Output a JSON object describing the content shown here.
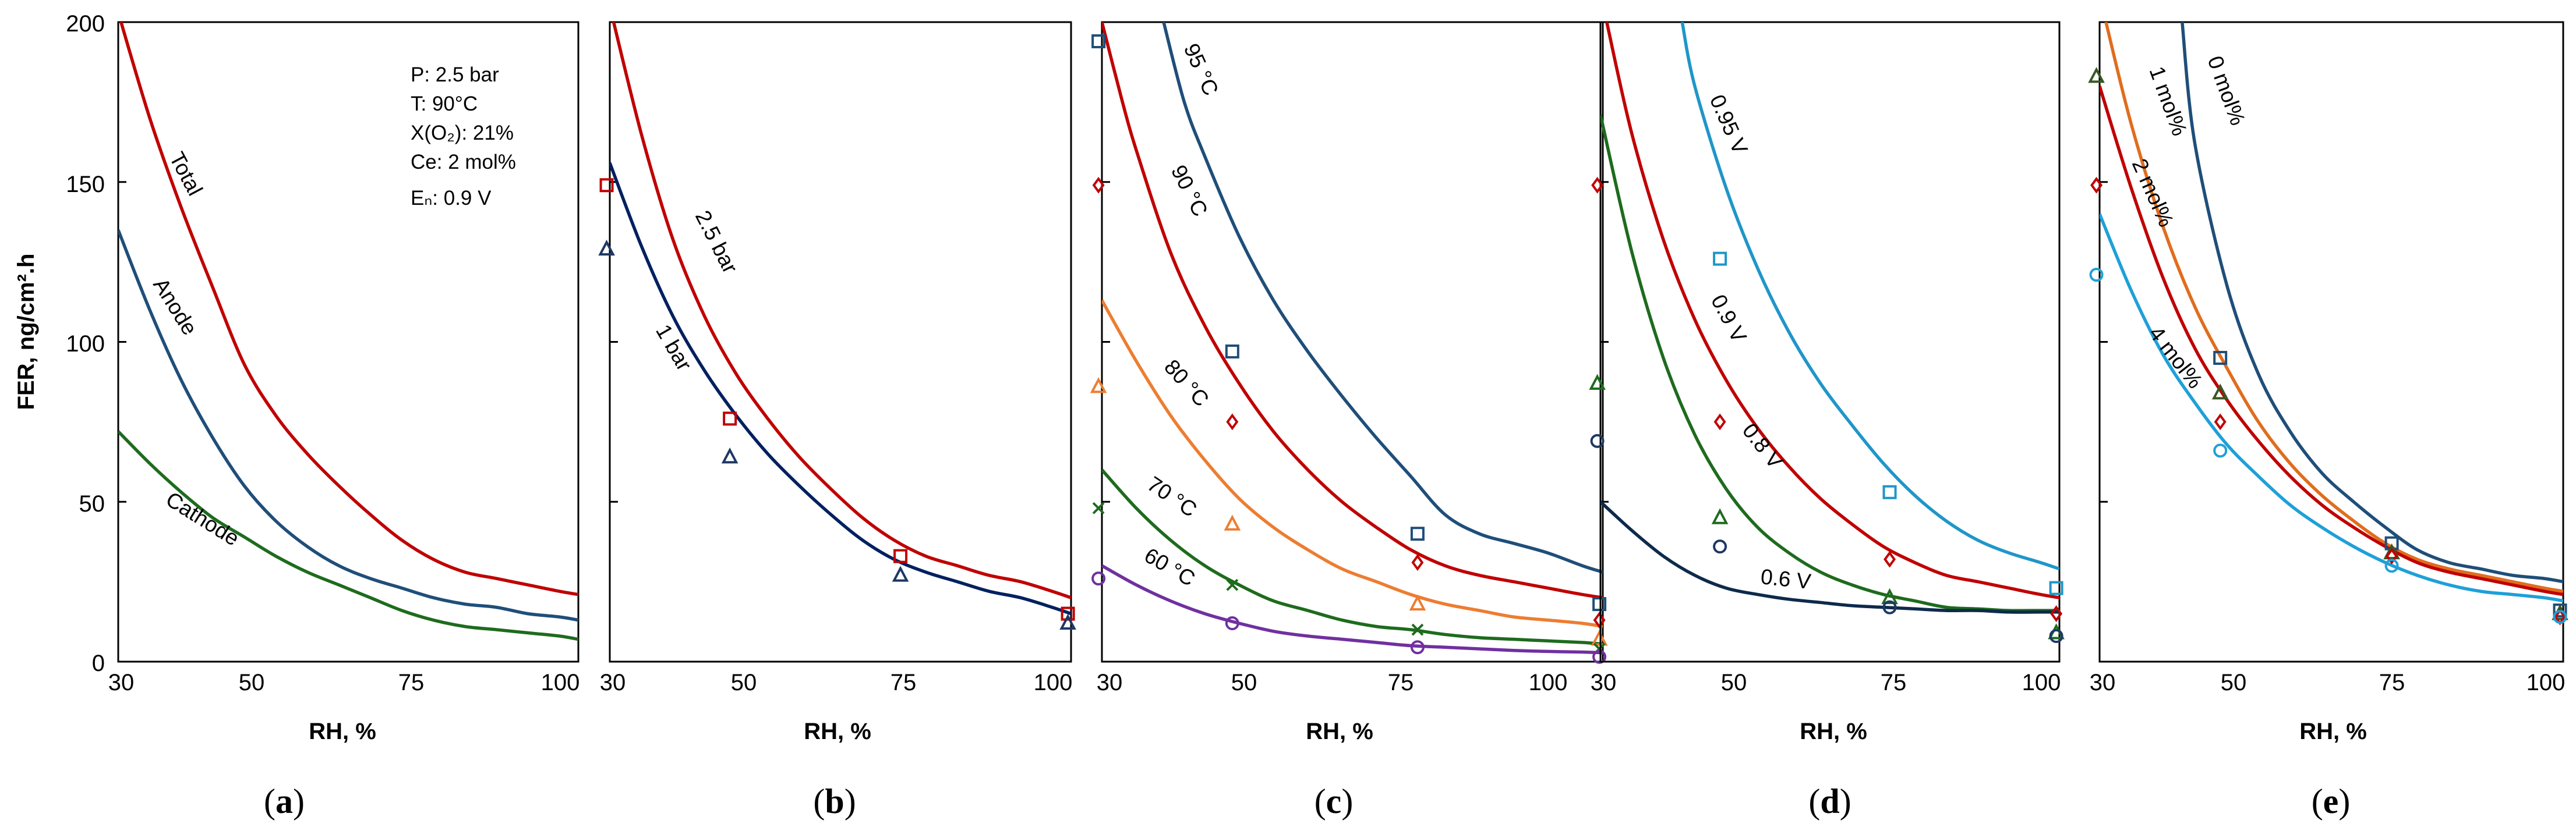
{
  "y_axis": {
    "title": "FER, ng/cm².h",
    "ticks": [
      "0",
      "50",
      "100",
      "150",
      "200"
    ]
  },
  "chart_data": [
    {
      "type": "line",
      "panel": "a",
      "title": "",
      "xlabel": "RH, %",
      "ylabel": "FER, ng/cm².h",
      "xlim": [
        30,
        103
      ],
      "ylim": [
        0,
        200
      ],
      "xticks": [
        "30",
        "50",
        "75",
        "100"
      ],
      "conditions": [
        "P: 2.5 bar",
        "T: 90°C",
        "X(O₂): 21%",
        "Ce: 2 mol%",
        "Eₙ: 0.9 V"
      ],
      "series": [
        {
          "name": "Total",
          "color": "#c00000",
          "x": [
            30,
            35,
            40,
            45,
            50,
            55,
            60,
            65,
            70,
            75,
            80,
            85,
            90,
            95,
            100,
            103
          ],
          "y": [
            203,
            170,
            142,
            117,
            93,
            77,
            65,
            55,
            46,
            38,
            32,
            28,
            26,
            24,
            22,
            21
          ]
        },
        {
          "name": "Anode",
          "color": "#1f4e79",
          "x": [
            30,
            35,
            40,
            45,
            50,
            55,
            60,
            65,
            70,
            75,
            80,
            85,
            90,
            95,
            100,
            103
          ],
          "y": [
            135,
            110,
            88,
            70,
            55,
            44,
            36,
            30,
            26,
            23,
            20,
            18,
            17,
            15,
            14,
            13
          ]
        },
        {
          "name": "Cathode",
          "color": "#1e6b1e",
          "x": [
            30,
            35,
            40,
            45,
            50,
            55,
            60,
            65,
            70,
            75,
            80,
            85,
            90,
            95,
            100,
            103
          ],
          "y": [
            72,
            62,
            53,
            45,
            39,
            33,
            28,
            24,
            20,
            16,
            13,
            11,
            10,
            9,
            8,
            7
          ]
        }
      ],
      "points": []
    },
    {
      "type": "line",
      "panel": "b",
      "title": "",
      "xlabel": "RH, %",
      "ylabel": "",
      "xlim": [
        30,
        103
      ],
      "ylim": [
        0,
        200
      ],
      "xticks": [
        "30",
        "50",
        "75",
        "100"
      ],
      "series": [
        {
          "name": "2.5 bar",
          "color": "#c00000",
          "x": [
            30,
            35,
            40,
            45,
            50,
            55,
            60,
            65,
            70,
            75,
            80,
            85,
            90,
            95,
            100,
            103
          ],
          "y": [
            205,
            165,
            132,
            108,
            90,
            76,
            64,
            54,
            45,
            38,
            33,
            30,
            27,
            25,
            22,
            20
          ]
        },
        {
          "name": "1 bar",
          "color": "#002060",
          "x": [
            30,
            35,
            40,
            45,
            50,
            55,
            60,
            65,
            70,
            75,
            80,
            85,
            90,
            95,
            100,
            103
          ],
          "y": [
            156,
            130,
            108,
            91,
            77,
            65,
            55,
            46,
            38,
            32,
            28,
            25,
            22,
            20,
            17,
            15
          ]
        }
      ],
      "points": [
        {
          "series": "2.5 bar",
          "marker": "square",
          "color": "#c00000",
          "x": [
            29.5,
            49,
            76,
            102.5
          ],
          "y": [
            149,
            76,
            33,
            15
          ]
        },
        {
          "series": "1 bar",
          "marker": "triangle",
          "color": "#1f3864",
          "x": [
            29.5,
            49,
            76,
            102.5
          ],
          "y": [
            129,
            64,
            27,
            12
          ]
        }
      ]
    },
    {
      "type": "line",
      "panel": "c",
      "title": "",
      "xlabel": "RH, %",
      "ylabel": "",
      "xlim": [
        30,
        103
      ],
      "ylim": [
        0,
        200
      ],
      "xticks": [
        "30",
        "50",
        "75",
        "100"
      ],
      "series": [
        {
          "name": "95 °C",
          "color": "#1f4e79",
          "x": [
            39,
            42,
            45,
            50,
            55,
            60,
            65,
            70,
            75,
            80,
            85,
            90,
            95,
            100,
            103
          ],
          "y": [
            200,
            175,
            158,
            133,
            113,
            97,
            83,
            70,
            58,
            46,
            40,
            37,
            34,
            30,
            28
          ]
        },
        {
          "name": "90 °C",
          "color": "#c00000",
          "x": [
            30,
            33,
            35,
            40,
            45,
            50,
            55,
            60,
            65,
            70,
            75,
            80,
            85,
            90,
            95,
            100,
            103
          ],
          "y": [
            200,
            175,
            160,
            128,
            105,
            87,
            72,
            60,
            50,
            42,
            35,
            30,
            27,
            25,
            23,
            21,
            20
          ]
        },
        {
          "name": "80 °C",
          "color": "#ed7d31",
          "x": [
            30,
            35,
            40,
            45,
            50,
            55,
            60,
            65,
            70,
            75,
            80,
            85,
            90,
            95,
            100,
            103
          ],
          "y": [
            113,
            94,
            77,
            63,
            51,
            42,
            35,
            29,
            25,
            21,
            18,
            16,
            14,
            13,
            12,
            11
          ]
        },
        {
          "name": "70 °C",
          "color": "#1e6b1e",
          "x": [
            30,
            35,
            40,
            45,
            50,
            55,
            60,
            65,
            70,
            75,
            80,
            85,
            90,
            95,
            100,
            103
          ],
          "y": [
            60,
            48,
            38,
            30,
            24,
            19,
            16,
            13,
            11,
            10,
            8.5,
            7.5,
            7,
            6.5,
            6,
            5.5
          ]
        },
        {
          "name": "60 °C",
          "color": "#7030a0",
          "x": [
            30,
            35,
            40,
            45,
            50,
            55,
            60,
            65,
            70,
            75,
            80,
            85,
            90,
            95,
            100,
            103
          ],
          "y": [
            30,
            24,
            19,
            15,
            12,
            9.5,
            8,
            7,
            6,
            5,
            4.5,
            4,
            3.5,
            3.2,
            3,
            2.8
          ]
        }
      ],
      "points": [
        {
          "series": "95 °C",
          "marker": "square",
          "color": "#1f4e79",
          "x": [
            29.5,
            49,
            76,
            102.5
          ],
          "y": [
            194,
            97,
            40,
            18
          ]
        },
        {
          "series": "90 °C",
          "marker": "diamond",
          "color": "#c00000",
          "x": [
            29.5,
            49,
            76,
            102.5
          ],
          "y": [
            149,
            75,
            31,
            13
          ]
        },
        {
          "series": "80 °C",
          "marker": "triangle",
          "color": "#ed7d31",
          "x": [
            29.5,
            49,
            76,
            102.5
          ],
          "y": [
            86,
            43,
            18,
            7
          ]
        },
        {
          "series": "70 °C",
          "marker": "x",
          "color": "#1e6b1e",
          "x": [
            29.5,
            49,
            76,
            102.5
          ],
          "y": [
            48,
            24,
            10,
            4
          ]
        },
        {
          "series": "60 °C",
          "marker": "circle",
          "color": "#7030a0",
          "x": [
            29.5,
            49,
            76,
            102.5
          ],
          "y": [
            26,
            12,
            4.5,
            1.5
          ]
        }
      ]
    },
    {
      "type": "line",
      "panel": "d",
      "title": "",
      "xlabel": "RH, %",
      "ylabel": "",
      "xlim": [
        30,
        103
      ],
      "ylim": [
        0,
        200
      ],
      "xticks": [
        "30",
        "50",
        "75",
        "100"
      ],
      "series": [
        {
          "name": "0.95 V",
          "color": "#1f96c8",
          "x": [
            43,
            45,
            50,
            55,
            60,
            65,
            70,
            75,
            80,
            85,
            90,
            95,
            100,
            103
          ],
          "y": [
            200,
            180,
            148,
            123,
            103,
            87,
            74,
            62,
            52,
            44,
            38,
            34,
            31,
            29
          ]
        },
        {
          "name": "0.9 V",
          "color": "#c00000",
          "x": [
            31,
            35,
            40,
            45,
            50,
            55,
            60,
            65,
            70,
            75,
            80,
            85,
            90,
            95,
            100,
            103
          ],
          "y": [
            200,
            165,
            132,
            107,
            88,
            73,
            61,
            51,
            43,
            36,
            31,
            27,
            25,
            23,
            21,
            20
          ]
        },
        {
          "name": "0.8 V",
          "color": "#1e6b1e",
          "x": [
            30,
            35,
            40,
            45,
            50,
            55,
            60,
            65,
            70,
            75,
            80,
            85,
            90,
            95,
            100,
            103
          ],
          "y": [
            171,
            128,
            95,
            71,
            54,
            42,
            34,
            28,
            24,
            21,
            19,
            17,
            16.5,
            16,
            16,
            16
          ]
        },
        {
          "name": "0.6 V",
          "color": "#0d2a4a",
          "x": [
            30,
            35,
            40,
            45,
            50,
            55,
            60,
            65,
            70,
            75,
            80,
            85,
            90,
            95,
            100,
            103
          ],
          "y": [
            50,
            41,
            33,
            27,
            23,
            21,
            19.5,
            18.5,
            17.5,
            17,
            16.5,
            16,
            16,
            15.5,
            15.5,
            15.5
          ]
        }
      ],
      "points": [
        {
          "series": "0.95 V",
          "marker": "square",
          "color": "#1f96c8",
          "x": [
            49,
            76,
            102.5
          ],
          "y": [
            126,
            53,
            23
          ]
        },
        {
          "series": "0.9 V",
          "marker": "diamond",
          "color": "#c00000",
          "x": [
            29.5,
            49,
            76,
            102.5
          ],
          "y": [
            149,
            75,
            32,
            15
          ]
        },
        {
          "series": "0.8 V",
          "marker": "triangle",
          "color": "#1e6b1e",
          "x": [
            29.5,
            49,
            76,
            102.5
          ],
          "y": [
            87,
            45,
            20,
            9
          ]
        },
        {
          "series": "0.6 V",
          "marker": "circle",
          "color": "#1f3864",
          "x": [
            29.5,
            49,
            76,
            102.5
          ],
          "y": [
            69,
            36,
            17,
            8
          ]
        }
      ]
    },
    {
      "type": "line",
      "panel": "e",
      "title": "",
      "xlabel": "RH, %",
      "ylabel": "",
      "xlim": [
        30,
        103
      ],
      "ylim": [
        0,
        200
      ],
      "xticks": [
        "30",
        "50",
        "75",
        "100"
      ],
      "series": [
        {
          "name": "0 mol%",
          "color": "#1f4e79",
          "x": [
            43,
            45,
            50,
            55,
            60,
            65,
            70,
            75,
            80,
            85,
            90,
            95,
            100,
            103
          ],
          "y": [
            200,
            162,
            118,
            90,
            72,
            59,
            50,
            42,
            35,
            31,
            29,
            27,
            26,
            25
          ]
        },
        {
          "name": "1 mol%",
          "color": "#e06d1e",
          "x": [
            31,
            35,
            40,
            45,
            50,
            55,
            60,
            65,
            70,
            75,
            80,
            85,
            90,
            95,
            100,
            103
          ],
          "y": [
            200,
            168,
            136,
            111,
            92,
            75,
            62,
            52,
            44,
            37,
            32,
            29,
            27,
            25,
            23,
            22
          ]
        },
        {
          "name": "2 mol%",
          "color": "#c00000",
          "x": [
            30,
            35,
            40,
            45,
            50,
            55,
            60,
            65,
            70,
            75,
            80,
            85,
            90,
            95,
            100,
            103
          ],
          "y": [
            180,
            148,
            120,
            98,
            82,
            69,
            58,
            49,
            42,
            36,
            31,
            28,
            26,
            24,
            22,
            21
          ]
        },
        {
          "name": "4 mol%",
          "color": "#1ea0d8",
          "x": [
            30,
            35,
            40,
            45,
            50,
            55,
            60,
            65,
            70,
            75,
            80,
            85,
            90,
            95,
            100,
            103
          ],
          "y": [
            140,
            116,
            96,
            81,
            68,
            58,
            49,
            42,
            36,
            31,
            27,
            24,
            22,
            21,
            20,
            19
          ]
        }
      ],
      "points": [
        {
          "series": "0 mol%",
          "marker": "square",
          "color": "#1f4e79",
          "x": [
            49,
            76,
            102.5
          ],
          "y": [
            95,
            37,
            16
          ]
        },
        {
          "series": "1 mol%",
          "marker": "triangle",
          "color": "#385723",
          "x": [
            29.5,
            49,
            76,
            102.5
          ],
          "y": [
            183,
            84,
            34,
            15
          ]
        },
        {
          "series": "2 mol%",
          "marker": "diamond",
          "color": "#c00000",
          "x": [
            29.5,
            49,
            76,
            102.5
          ],
          "y": [
            149,
            75,
            33,
            14
          ]
        },
        {
          "series": "4 mol%",
          "marker": "circle",
          "color": "#1ea0d8",
          "x": [
            29.5,
            49,
            76,
            102.5
          ],
          "y": [
            121,
            66,
            30,
            14
          ]
        }
      ]
    }
  ],
  "panel_letters": [
    "a",
    "b",
    "c",
    "d",
    "e"
  ],
  "curve_labels": {
    "a": [
      "Total",
      "Anode",
      "Cathode"
    ],
    "b": [
      "2.5 bar",
      "1 bar"
    ],
    "c": [
      "95 °C",
      "90 °C",
      "80 °C",
      "70 °C",
      "60 °C"
    ],
    "d": [
      "0.95 V",
      "0.9 V",
      "0.8 V",
      "0.6 V"
    ],
    "e": [
      "0 mol%",
      "1 mol%",
      "2 mol%",
      "4 mol%"
    ]
  }
}
